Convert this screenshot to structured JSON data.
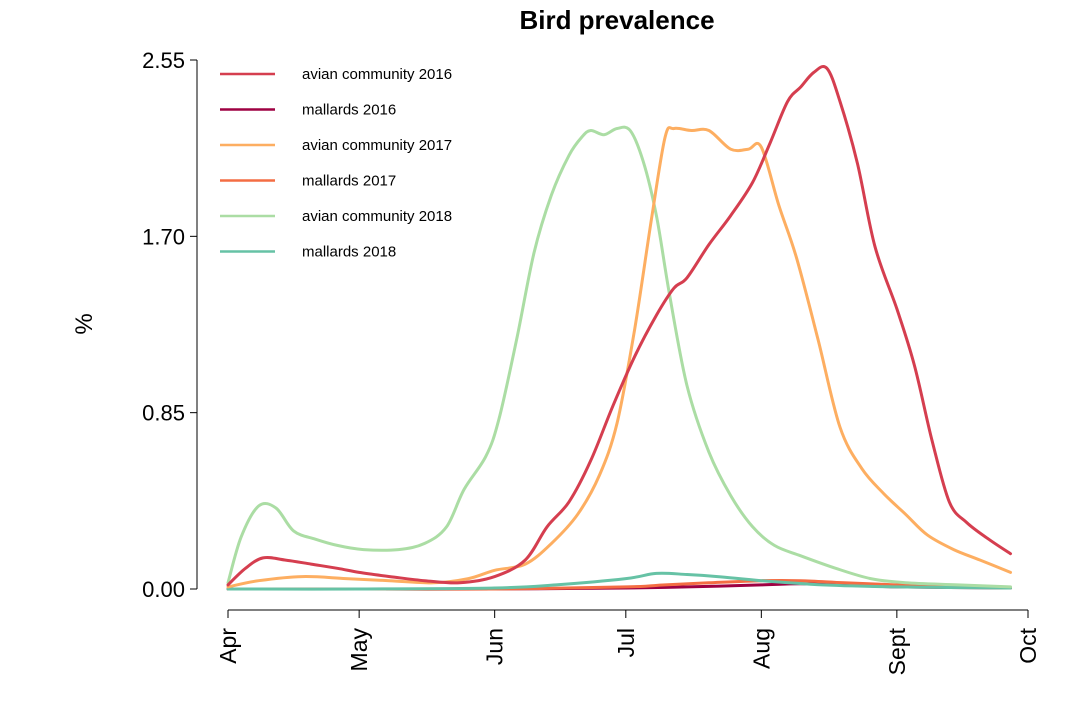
{
  "chart_data": {
    "type": "line",
    "title": "Bird prevalence",
    "xlabel": "",
    "ylabel": "%",
    "ylim": [
      0,
      2.55
    ],
    "yticks": [
      0.0,
      0.85,
      1.7,
      2.55
    ],
    "ytick_labels": [
      "0.00",
      "0.85",
      "1.70",
      "2.55"
    ],
    "xlim": [
      "2000-04-01",
      "2000-10-01"
    ],
    "xtick_labels": [
      "Apr",
      "May",
      "Jun",
      "Jul",
      "Aug",
      "Sept",
      "Oct"
    ],
    "xtick_dates": [
      "2000-04-01",
      "2000-05-01",
      "2000-06-01",
      "2000-07-01",
      "2000-08-01",
      "2000-09-01",
      "2000-10-01"
    ],
    "grid": false,
    "legend_position": "top-left",
    "series": [
      {
        "name": "avian community 2016",
        "color": "#d53e4f",
        "points": [
          [
            "2000-04-01",
            0.02
          ],
          [
            "2000-04-05",
            0.1
          ],
          [
            "2000-04-09",
            0.15
          ],
          [
            "2000-04-14",
            0.14
          ],
          [
            "2000-04-20",
            0.12
          ],
          [
            "2000-04-26",
            0.1
          ],
          [
            "2000-05-01",
            0.08
          ],
          [
            "2000-05-08",
            0.06
          ],
          [
            "2000-05-16",
            0.04
          ],
          [
            "2000-05-24",
            0.03
          ],
          [
            "2000-06-01",
            0.06
          ],
          [
            "2000-06-08",
            0.14
          ],
          [
            "2000-06-13",
            0.3
          ],
          [
            "2000-06-18",
            0.42
          ],
          [
            "2000-06-23",
            0.62
          ],
          [
            "2000-06-28",
            0.88
          ],
          [
            "2000-07-03",
            1.12
          ],
          [
            "2000-07-08",
            1.32
          ],
          [
            "2000-07-12",
            1.45
          ],
          [
            "2000-07-15",
            1.5
          ],
          [
            "2000-07-20",
            1.66
          ],
          [
            "2000-07-25",
            1.8
          ],
          [
            "2000-07-30",
            1.96
          ],
          [
            "2000-08-03",
            2.15
          ],
          [
            "2000-08-07",
            2.35
          ],
          [
            "2000-08-10",
            2.42
          ],
          [
            "2000-08-13",
            2.49
          ],
          [
            "2000-08-16",
            2.51
          ],
          [
            "2000-08-19",
            2.35
          ],
          [
            "2000-08-23",
            2.05
          ],
          [
            "2000-08-27",
            1.65
          ],
          [
            "2000-09-01",
            1.35
          ],
          [
            "2000-09-05",
            1.08
          ],
          [
            "2000-09-09",
            0.72
          ],
          [
            "2000-09-13",
            0.42
          ],
          [
            "2000-09-17",
            0.32
          ],
          [
            "2000-09-22",
            0.24
          ],
          [
            "2000-09-27",
            0.17
          ]
        ]
      },
      {
        "name": "mallards 2016",
        "color": "#9e0142",
        "points": [
          [
            "2000-04-01",
            0.0
          ],
          [
            "2000-05-01",
            0.0
          ],
          [
            "2000-06-01",
            0.0
          ],
          [
            "2000-07-01",
            0.005
          ],
          [
            "2000-07-15",
            0.01
          ],
          [
            "2000-08-01",
            0.02
          ],
          [
            "2000-08-10",
            0.025
          ],
          [
            "2000-08-20",
            0.02
          ],
          [
            "2000-09-01",
            0.01
          ],
          [
            "2000-09-27",
            0.005
          ]
        ]
      },
      {
        "name": "avian community 2017",
        "color": "#fdae61",
        "points": [
          [
            "2000-04-01",
            0.01
          ],
          [
            "2000-04-08",
            0.04
          ],
          [
            "2000-04-18",
            0.06
          ],
          [
            "2000-04-28",
            0.05
          ],
          [
            "2000-05-08",
            0.04
          ],
          [
            "2000-05-18",
            0.03
          ],
          [
            "2000-05-26",
            0.05
          ],
          [
            "2000-06-01",
            0.09
          ],
          [
            "2000-06-08",
            0.12
          ],
          [
            "2000-06-14",
            0.22
          ],
          [
            "2000-06-20",
            0.36
          ],
          [
            "2000-06-25",
            0.55
          ],
          [
            "2000-06-29",
            0.8
          ],
          [
            "2000-07-03",
            1.25
          ],
          [
            "2000-07-07",
            1.8
          ],
          [
            "2000-07-10",
            2.18
          ],
          [
            "2000-07-12",
            2.22
          ],
          [
            "2000-07-16",
            2.21
          ],
          [
            "2000-07-20",
            2.21
          ],
          [
            "2000-07-25",
            2.12
          ],
          [
            "2000-07-29",
            2.12
          ],
          [
            "2000-08-01",
            2.13
          ],
          [
            "2000-08-05",
            1.85
          ],
          [
            "2000-08-09",
            1.6
          ],
          [
            "2000-08-14",
            1.2
          ],
          [
            "2000-08-19",
            0.78
          ],
          [
            "2000-08-24",
            0.58
          ],
          [
            "2000-08-29",
            0.46
          ],
          [
            "2000-09-03",
            0.36
          ],
          [
            "2000-09-08",
            0.26
          ],
          [
            "2000-09-14",
            0.19
          ],
          [
            "2000-09-20",
            0.14
          ],
          [
            "2000-09-27",
            0.08
          ]
        ]
      },
      {
        "name": "mallards 2017",
        "color": "#f46d43",
        "points": [
          [
            "2000-04-01",
            0.0
          ],
          [
            "2000-05-01",
            0.0
          ],
          [
            "2000-06-01",
            0.0
          ],
          [
            "2000-07-01",
            0.01
          ],
          [
            "2000-07-10",
            0.02
          ],
          [
            "2000-07-20",
            0.03
          ],
          [
            "2000-08-01",
            0.04
          ],
          [
            "2000-08-10",
            0.04
          ],
          [
            "2000-08-20",
            0.03
          ],
          [
            "2000-09-01",
            0.02
          ],
          [
            "2000-09-15",
            0.01
          ],
          [
            "2000-09-27",
            0.005
          ]
        ]
      },
      {
        "name": "avian community 2018",
        "color": "#abdda4",
        "points": [
          [
            "2000-04-01",
            0.03
          ],
          [
            "2000-04-04",
            0.25
          ],
          [
            "2000-04-08",
            0.4
          ],
          [
            "2000-04-12",
            0.39
          ],
          [
            "2000-04-16",
            0.28
          ],
          [
            "2000-04-21",
            0.24
          ],
          [
            "2000-04-26",
            0.21
          ],
          [
            "2000-05-02",
            0.19
          ],
          [
            "2000-05-10",
            0.19
          ],
          [
            "2000-05-16",
            0.22
          ],
          [
            "2000-05-21",
            0.3
          ],
          [
            "2000-05-25",
            0.48
          ],
          [
            "2000-05-30",
            0.64
          ],
          [
            "2000-06-02",
            0.82
          ],
          [
            "2000-06-06",
            1.2
          ],
          [
            "2000-06-10",
            1.62
          ],
          [
            "2000-06-14",
            1.9
          ],
          [
            "2000-06-18",
            2.09
          ],
          [
            "2000-06-21",
            2.18
          ],
          [
            "2000-06-23",
            2.21
          ],
          [
            "2000-06-26",
            2.19
          ],
          [
            "2000-06-29",
            2.22
          ],
          [
            "2000-07-02",
            2.21
          ],
          [
            "2000-07-05",
            2.06
          ],
          [
            "2000-07-08",
            1.8
          ],
          [
            "2000-07-11",
            1.42
          ],
          [
            "2000-07-15",
            0.98
          ],
          [
            "2000-07-20",
            0.66
          ],
          [
            "2000-07-25",
            0.45
          ],
          [
            "2000-07-30",
            0.3
          ],
          [
            "2000-08-04",
            0.21
          ],
          [
            "2000-08-10",
            0.16
          ],
          [
            "2000-08-18",
            0.1
          ],
          [
            "2000-08-26",
            0.05
          ],
          [
            "2000-09-03",
            0.03
          ],
          [
            "2000-09-15",
            0.02
          ],
          [
            "2000-09-27",
            0.01
          ]
        ]
      },
      {
        "name": "mallards 2018",
        "color": "#66c2a5",
        "points": [
          [
            "2000-04-01",
            0.0
          ],
          [
            "2000-05-01",
            0.0
          ],
          [
            "2000-06-01",
            0.005
          ],
          [
            "2000-06-15",
            0.02
          ],
          [
            "2000-07-01",
            0.05
          ],
          [
            "2000-07-08",
            0.075
          ],
          [
            "2000-07-15",
            0.07
          ],
          [
            "2000-07-22",
            0.06
          ],
          [
            "2000-08-01",
            0.04
          ],
          [
            "2000-08-15",
            0.02
          ],
          [
            "2000-09-01",
            0.01
          ],
          [
            "2000-09-27",
            0.005
          ]
        ]
      }
    ]
  }
}
